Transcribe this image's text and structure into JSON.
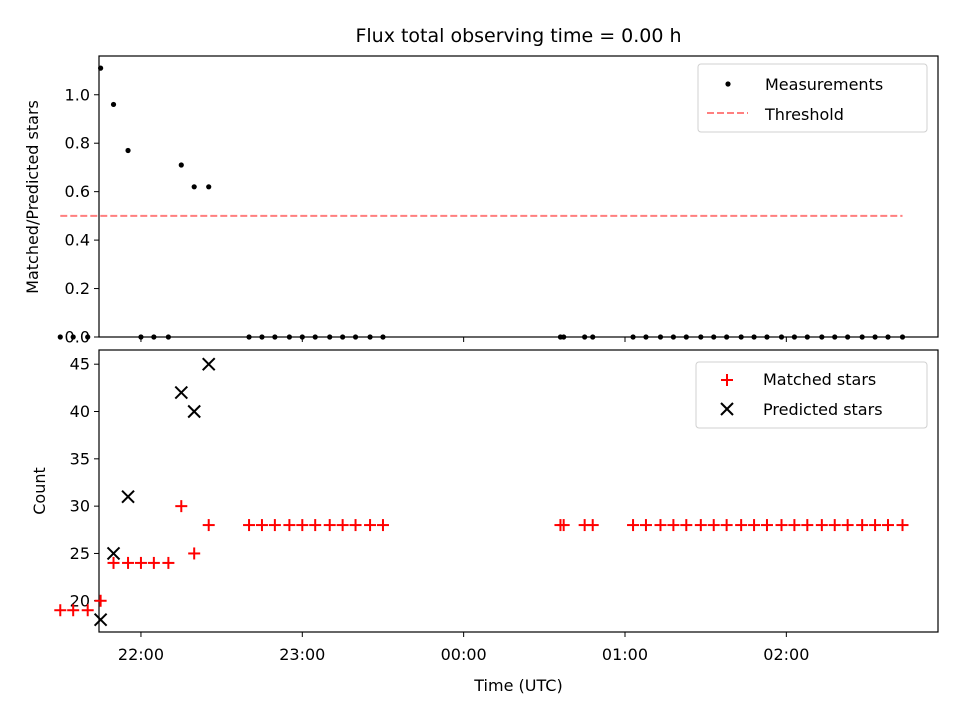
{
  "figure": {
    "title": "Flux total observing time = 0.00 h",
    "x_label": "Time (UTC)",
    "x_ticks": [
      {
        "t": 22.0,
        "label": "22:00"
      },
      {
        "t": 23.0,
        "label": "23:00"
      },
      {
        "t": 24.0,
        "label": "00:00"
      },
      {
        "t": 25.0,
        "label": "01:00"
      },
      {
        "t": 26.0,
        "label": "02:00"
      }
    ]
  },
  "colors": {
    "measurements": "#000000",
    "threshold": "#ff7f7f",
    "matched": "#ff0000",
    "predicted": "#000000"
  },
  "chart_data": [
    {
      "type": "scatter",
      "ylabel": "Matched/Predicted stars",
      "xlim": [
        21.74,
        26.94
      ],
      "ylim": [
        0.0,
        1.16
      ],
      "y_ticks": [
        0.0,
        0.2,
        0.4,
        0.6,
        0.8,
        1.0
      ],
      "legend": {
        "position": "top-right",
        "entries": [
          "Measurements",
          "Threshold"
        ]
      },
      "series": [
        {
          "name": "Measurements",
          "marker": "dot",
          "x": [
            21.5,
            21.58,
            21.67,
            21.75,
            21.83,
            21.92,
            22.0,
            22.08,
            22.17,
            22.25,
            22.33,
            22.42,
            22.67,
            22.75,
            22.83,
            22.92,
            23.0,
            23.08,
            23.17,
            23.25,
            23.33,
            23.42,
            23.5,
            24.6,
            24.62,
            24.75,
            24.8,
            25.05,
            25.13,
            25.22,
            25.3,
            25.38,
            25.47,
            25.55,
            25.63,
            25.72,
            25.8,
            25.88,
            25.97,
            26.05,
            26.13,
            26.22,
            26.3,
            26.38,
            26.47,
            26.55,
            26.63,
            26.72
          ],
          "y": [
            0.0,
            0.0,
            0.0,
            1.11,
            0.96,
            0.77,
            0.0,
            0.0,
            0.0,
            0.71,
            0.62,
            0.62,
            0.0,
            0.0,
            0.0,
            0.0,
            0.0,
            0.0,
            0.0,
            0.0,
            0.0,
            0.0,
            0.0,
            0.0,
            0.0,
            0.0,
            0.0,
            0.0,
            0.0,
            0.0,
            0.0,
            0.0,
            0.0,
            0.0,
            0.0,
            0.0,
            0.0,
            0.0,
            0.0,
            0.0,
            0.0,
            0.0,
            0.0,
            0.0,
            0.0,
            0.0,
            0.0,
            0.0
          ]
        },
        {
          "name": "Threshold",
          "type": "line",
          "style": "dashed",
          "x": [
            21.5,
            26.72
          ],
          "y": [
            0.5,
            0.5
          ]
        }
      ]
    },
    {
      "type": "scatter",
      "ylabel": "Count",
      "xlim": [
        21.74,
        26.94
      ],
      "ylim": [
        16.7,
        46.5
      ],
      "y_ticks": [
        20,
        25,
        30,
        35,
        40,
        45
      ],
      "legend": {
        "position": "top-right",
        "entries": [
          "Matched stars",
          "Predicted stars"
        ]
      },
      "series": [
        {
          "name": "Matched stars",
          "marker": "plus",
          "x": [
            21.5,
            21.58,
            21.67,
            21.75,
            21.83,
            21.92,
            22.0,
            22.08,
            22.17,
            22.25,
            22.33,
            22.42,
            22.67,
            22.75,
            22.83,
            22.92,
            23.0,
            23.08,
            23.17,
            23.25,
            23.33,
            23.42,
            23.5,
            24.6,
            24.62,
            24.75,
            24.8,
            25.05,
            25.13,
            25.22,
            25.3,
            25.38,
            25.47,
            25.55,
            25.63,
            25.72,
            25.8,
            25.88,
            25.97,
            26.05,
            26.13,
            26.22,
            26.3,
            26.38,
            26.47,
            26.55,
            26.63,
            26.72
          ],
          "y": [
            19,
            19,
            19,
            20,
            24,
            24,
            24,
            24,
            24,
            30,
            25,
            28,
            28,
            28,
            28,
            28,
            28,
            28,
            28,
            28,
            28,
            28,
            28,
            28,
            28,
            28,
            28,
            28,
            28,
            28,
            28,
            28,
            28,
            28,
            28,
            28,
            28,
            28,
            28,
            28,
            28,
            28,
            28,
            28,
            28,
            28,
            28,
            28
          ]
        },
        {
          "name": "Predicted stars",
          "marker": "x",
          "x": [
            21.75,
            21.83,
            21.92,
            22.25,
            22.33,
            22.42
          ],
          "y": [
            18,
            25,
            31,
            42,
            40,
            45
          ]
        }
      ]
    }
  ]
}
